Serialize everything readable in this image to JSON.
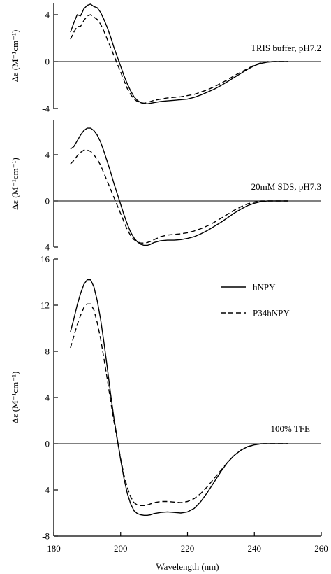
{
  "chart_data": [
    {
      "type": "line",
      "annotation": "TRIS buffer, pH7.2",
      "ylabel": "Δε (M⁻¹cm⁻¹)",
      "xlim": [
        185,
        260
      ],
      "ylim": [
        -4,
        5
      ],
      "yticks": [
        -4,
        0,
        4
      ],
      "grid": false,
      "zero_line": true,
      "series": [
        {
          "style": "solid",
          "x": [
            185,
            186,
            187,
            188,
            189,
            190,
            191,
            192,
            193,
            194,
            195,
            196,
            197,
            198,
            199,
            200,
            201,
            202,
            203,
            204,
            205,
            206,
            207,
            208,
            209,
            210,
            212,
            214,
            216,
            218,
            220,
            222,
            224,
            226,
            228,
            230,
            232,
            234,
            236,
            238,
            240,
            242,
            244,
            246,
            248,
            250
          ],
          "y": [
            2.5,
            3.3,
            4.0,
            3.9,
            4.5,
            4.8,
            4.9,
            4.7,
            4.6,
            4.2,
            3.6,
            2.9,
            2.1,
            1.2,
            0.4,
            -0.4,
            -1.2,
            -1.9,
            -2.5,
            -3.0,
            -3.3,
            -3.5,
            -3.6,
            -3.6,
            -3.55,
            -3.5,
            -3.4,
            -3.35,
            -3.3,
            -3.25,
            -3.2,
            -3.05,
            -2.85,
            -2.6,
            -2.35,
            -2.05,
            -1.7,
            -1.35,
            -1.0,
            -0.65,
            -0.35,
            -0.15,
            -0.05,
            0.0,
            0.0,
            0.0
          ]
        },
        {
          "style": "dashed",
          "x": [
            185,
            186,
            187,
            188,
            189,
            190,
            191,
            192,
            193,
            194,
            195,
            196,
            197,
            198,
            199,
            200,
            201,
            202,
            203,
            204,
            205,
            206,
            207,
            208,
            209,
            210,
            212,
            214,
            216,
            218,
            220,
            222,
            224,
            226,
            228,
            230,
            232,
            234,
            236,
            238,
            240,
            242,
            244,
            246,
            248,
            250
          ],
          "y": [
            1.9,
            2.5,
            3.0,
            3.0,
            3.5,
            3.9,
            4.0,
            3.8,
            3.6,
            3.2,
            2.6,
            1.9,
            1.2,
            0.5,
            -0.2,
            -0.9,
            -1.6,
            -2.3,
            -2.8,
            -3.2,
            -3.4,
            -3.5,
            -3.55,
            -3.5,
            -3.4,
            -3.3,
            -3.2,
            -3.1,
            -3.05,
            -3.0,
            -2.9,
            -2.8,
            -2.6,
            -2.4,
            -2.15,
            -1.85,
            -1.55,
            -1.2,
            -0.9,
            -0.6,
            -0.3,
            -0.1,
            0.0,
            0.0,
            0.0,
            0.0
          ]
        }
      ]
    },
    {
      "type": "line",
      "annotation": "20mM SDS, pH7.3",
      "ylabel": "Δε (M⁻¹cm⁻¹)",
      "xlim": [
        185,
        260
      ],
      "ylim": [
        -4,
        7
      ],
      "yticks": [
        -4,
        0,
        4
      ],
      "grid": false,
      "zero_line": true,
      "series": [
        {
          "style": "solid",
          "x": [
            185,
            186,
            187,
            188,
            189,
            190,
            191,
            192,
            193,
            194,
            195,
            196,
            197,
            198,
            199,
            200,
            201,
            202,
            203,
            204,
            205,
            206,
            207,
            208,
            209,
            210,
            212,
            214,
            216,
            218,
            220,
            222,
            224,
            226,
            228,
            230,
            232,
            234,
            236,
            238,
            240,
            242,
            244,
            246,
            248,
            250
          ],
          "y": [
            4.5,
            4.7,
            5.2,
            5.7,
            6.1,
            6.3,
            6.3,
            6.1,
            5.7,
            5.1,
            4.3,
            3.4,
            2.5,
            1.5,
            0.6,
            -0.3,
            -1.2,
            -2.0,
            -2.7,
            -3.2,
            -3.55,
            -3.75,
            -3.85,
            -3.85,
            -3.75,
            -3.6,
            -3.45,
            -3.4,
            -3.4,
            -3.35,
            -3.25,
            -3.1,
            -2.85,
            -2.55,
            -2.2,
            -1.85,
            -1.45,
            -1.05,
            -0.7,
            -0.4,
            -0.2,
            -0.05,
            0.0,
            0.0,
            0.0,
            0.0
          ]
        },
        {
          "style": "dashed",
          "x": [
            185,
            186,
            187,
            188,
            189,
            190,
            191,
            192,
            193,
            194,
            195,
            196,
            197,
            198,
            199,
            200,
            201,
            202,
            203,
            204,
            205,
            206,
            207,
            208,
            209,
            210,
            212,
            214,
            216,
            218,
            220,
            222,
            224,
            226,
            228,
            230,
            232,
            234,
            236,
            238,
            240,
            242,
            244,
            246,
            248,
            250
          ],
          "y": [
            3.2,
            3.5,
            3.9,
            4.2,
            4.4,
            4.4,
            4.3,
            4.0,
            3.6,
            3.1,
            2.4,
            1.7,
            1.0,
            0.3,
            -0.4,
            -1.1,
            -1.8,
            -2.5,
            -3.0,
            -3.35,
            -3.55,
            -3.65,
            -3.65,
            -3.6,
            -3.5,
            -3.35,
            -3.1,
            -2.95,
            -2.9,
            -2.85,
            -2.75,
            -2.6,
            -2.4,
            -2.15,
            -1.85,
            -1.5,
            -1.15,
            -0.8,
            -0.5,
            -0.25,
            -0.1,
            0.0,
            0.0,
            0.0,
            0.0,
            0.0
          ]
        }
      ]
    },
    {
      "type": "line",
      "annotation": "100% TFE",
      "xlabel": "Wavelength (nm)",
      "ylabel": "Δε (M⁻¹cm⁻¹)",
      "xlim": [
        180,
        260
      ],
      "xticks": [
        180,
        200,
        220,
        240,
        260
      ],
      "ylim": [
        -8,
        16
      ],
      "yticks": [
        -8,
        -4,
        0,
        4,
        8,
        12,
        16
      ],
      "grid": false,
      "zero_line": true,
      "legend": {
        "placement": "upper-right",
        "entries": [
          {
            "label": "hNPY",
            "style": "solid"
          },
          {
            "label": "P34hNPY",
            "style": "dashed"
          }
        ]
      },
      "series": [
        {
          "name": "hNPY",
          "style": "solid",
          "x": [
            185,
            186,
            187,
            188,
            189,
            190,
            191,
            192,
            193,
            194,
            195,
            196,
            197,
            198,
            199,
            200,
            201,
            202,
            203,
            204,
            205,
            206,
            207,
            208,
            209,
            210,
            212,
            214,
            216,
            218,
            220,
            222,
            224,
            226,
            228,
            230,
            232,
            234,
            236,
            238,
            240,
            242,
            244,
            246,
            248,
            250
          ],
          "y": [
            9.7,
            10.8,
            12.0,
            13.0,
            13.8,
            14.2,
            14.2,
            13.6,
            12.4,
            10.8,
            8.8,
            6.6,
            4.3,
            2.2,
            0.4,
            -1.4,
            -3.0,
            -4.3,
            -5.2,
            -5.8,
            -6.05,
            -6.15,
            -6.2,
            -6.2,
            -6.15,
            -6.05,
            -5.95,
            -5.9,
            -5.95,
            -6.0,
            -5.9,
            -5.6,
            -5.0,
            -4.2,
            -3.3,
            -2.4,
            -1.6,
            -1.0,
            -0.55,
            -0.25,
            -0.1,
            0.0,
            0.0,
            0.0,
            0.0,
            0.0
          ]
        },
        {
          "name": "P34hNPY",
          "style": "dashed",
          "x": [
            185,
            186,
            187,
            188,
            189,
            190,
            191,
            192,
            193,
            194,
            195,
            196,
            197,
            198,
            199,
            200,
            201,
            202,
            203,
            204,
            205,
            206,
            207,
            208,
            209,
            210,
            212,
            214,
            216,
            218,
            220,
            222,
            224,
            226,
            228,
            230,
            232,
            234,
            236,
            238,
            240,
            242,
            244,
            246,
            248,
            250
          ],
          "y": [
            8.3,
            9.3,
            10.3,
            11.1,
            11.8,
            12.1,
            12.1,
            11.6,
            10.5,
            9.1,
            7.4,
            5.6,
            3.7,
            1.9,
            0.3,
            -1.3,
            -2.7,
            -3.8,
            -4.6,
            -5.1,
            -5.3,
            -5.35,
            -5.35,
            -5.3,
            -5.2,
            -5.1,
            -5.0,
            -5.0,
            -5.05,
            -5.1,
            -5.0,
            -4.75,
            -4.3,
            -3.7,
            -3.0,
            -2.3,
            -1.6,
            -1.0,
            -0.55,
            -0.25,
            -0.1,
            0.0,
            0.0,
            0.0,
            0.0,
            0.0
          ]
        }
      ]
    }
  ]
}
